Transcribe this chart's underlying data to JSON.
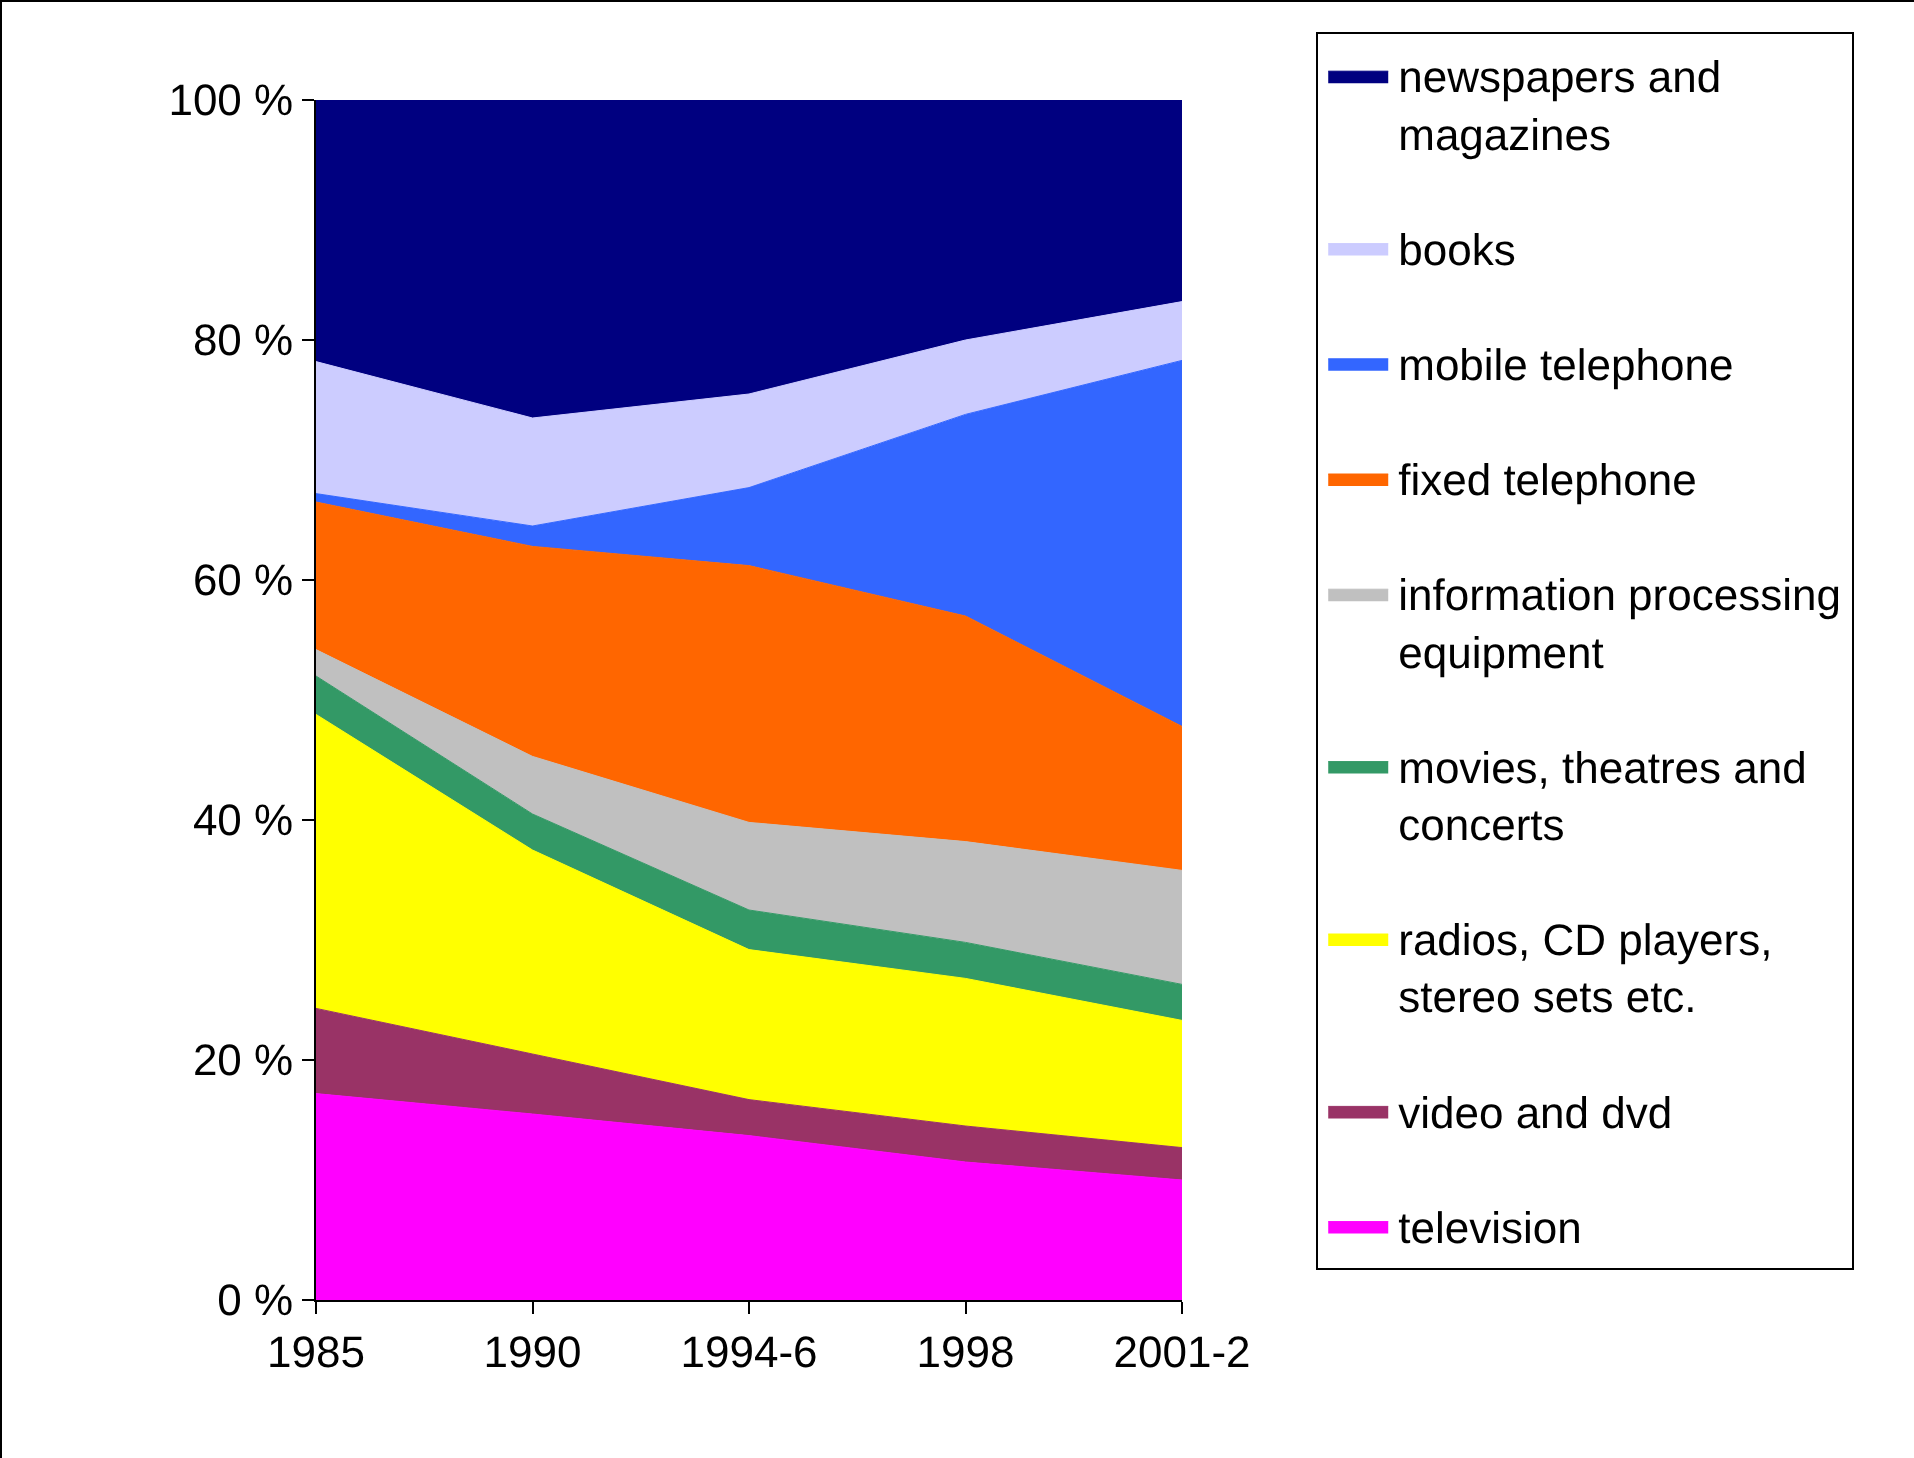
{
  "chart_data": {
    "type": "area",
    "stacked": true,
    "categories": [
      "1985",
      "1990",
      "1994-6",
      "1998",
      "2001-2"
    ],
    "ylim": [
      0,
      100
    ],
    "yticks": [
      {
        "value": 0,
        "label": "0 %"
      },
      {
        "value": 20,
        "label": "20 %"
      },
      {
        "value": 40,
        "label": "40 %"
      },
      {
        "value": 60,
        "label": "60 %"
      },
      {
        "value": 80,
        "label": "80 %"
      },
      {
        "value": 100,
        "label": "100 %"
      }
    ],
    "legend": "right",
    "series": [
      {
        "name": "television",
        "color": "#ff00ff",
        "values": [
          17.2,
          15.5,
          13.7,
          11.5,
          10
        ]
      },
      {
        "name": "video and dvd",
        "color": "#993366",
        "values": [
          7.1,
          5,
          3,
          3,
          2.7
        ]
      },
      {
        "name": "radios, CD players, stereo sets etc.",
        "color": "#ffff00",
        "values": [
          24.5,
          17,
          12.5,
          12.3,
          10.6
        ]
      },
      {
        "name": "movies, theatres and concerts",
        "color": "#339966",
        "values": [
          3.2,
          3,
          3.3,
          3,
          3
        ]
      },
      {
        "name": "information processing equipment",
        "color": "#c0c0c0",
        "values": [
          2.2,
          4.8,
          7.3,
          8.4,
          9.5
        ]
      },
      {
        "name": "fixed telephone",
        "color": "#ff6600",
        "values": [
          12.3,
          17.5,
          21.4,
          18.8,
          12
        ]
      },
      {
        "name": "mobile telephone",
        "color": "#3366ff",
        "values": [
          0.7,
          1.7,
          6.5,
          16.8,
          30.5
        ]
      },
      {
        "name": "books",
        "color": "#ccccff",
        "values": [
          11,
          9,
          7.8,
          6.2,
          4.9
        ]
      },
      {
        "name": "newspapers and magazines",
        "color": "#000080",
        "values": [
          21.8,
          26.5,
          24.5,
          20,
          16.8
        ]
      }
    ]
  }
}
